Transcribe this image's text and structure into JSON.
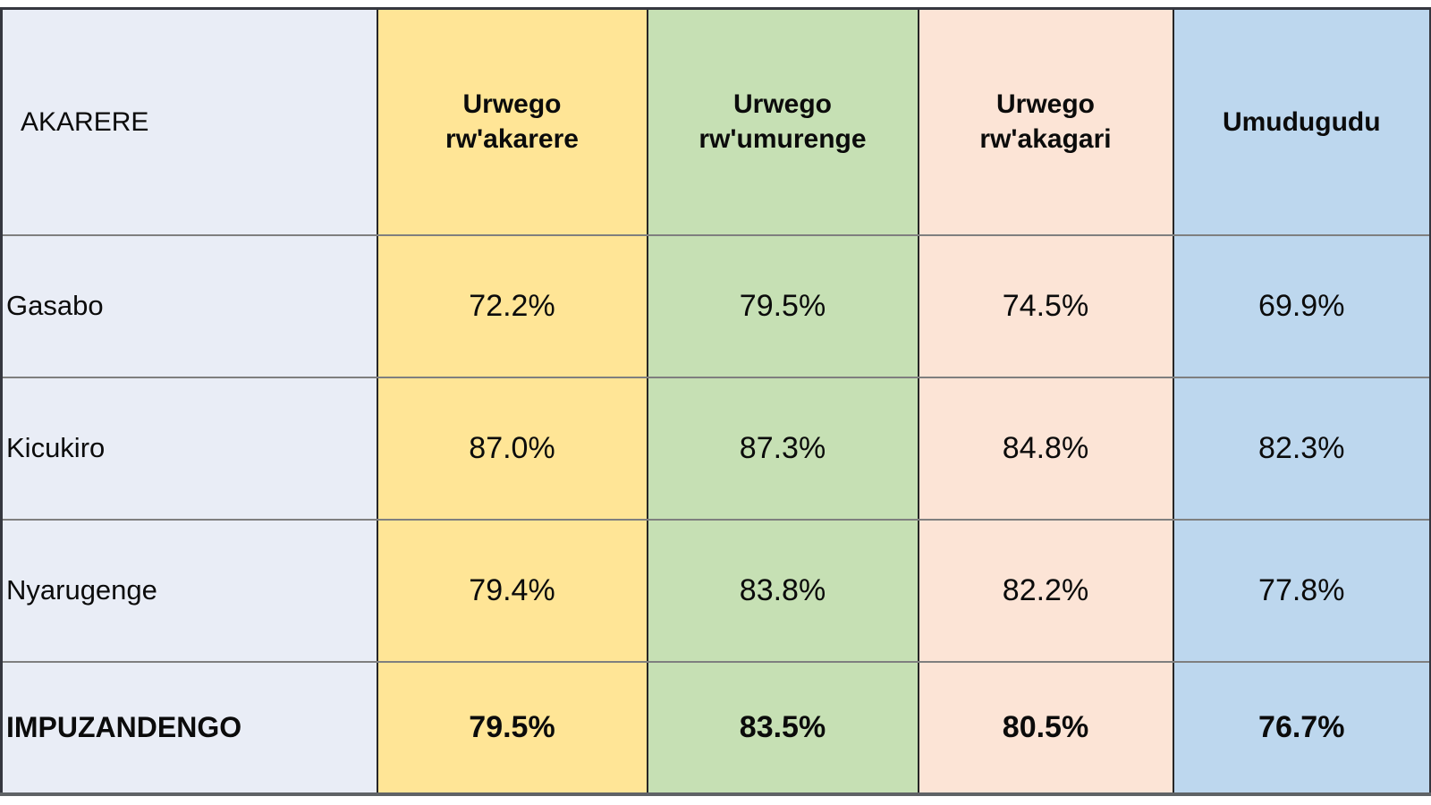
{
  "table": {
    "header_labels": [
      "AKARERE",
      "Urwego rw'akarere",
      "Urwego rw'umurenge",
      "Urwego rw'akagari",
      "Umudugudu"
    ],
    "rows": [
      {
        "label": "Gasabo",
        "values": [
          "72.2%",
          "79.5%",
          "74.5%",
          "69.9%"
        ]
      },
      {
        "label": "Kicukiro",
        "values": [
          "87.0%",
          "87.3%",
          "84.8%",
          "82.3%"
        ]
      },
      {
        "label": "Nyarugenge",
        "values": [
          "79.4%",
          "83.8%",
          "82.2%",
          "77.8%"
        ]
      },
      {
        "label": "IMPUZANDENGO",
        "values": [
          "79.5%",
          "83.5%",
          "80.5%",
          "76.7%"
        ]
      }
    ],
    "colors": {
      "col_akarere_bg": "#e9edf6",
      "col_urwego_rw_akarere_bg": "#ffe596",
      "col_urwego_rw_umurenge_bg": "#c6e0b4",
      "col_urwego_rw_akagari_bg": "#fce4d6",
      "col_umudugudu_bg": "#bdd7ee",
      "vertical_border": "#262626",
      "horizontal_border": "#7f7f7f",
      "outer_border": "#35373f"
    }
  },
  "chart_data": {
    "type": "table",
    "columns": [
      "AKARERE",
      "Urwego rw'akarere",
      "Urwego rw'umurenge",
      "Urwego rw'akagari",
      "Umudugudu"
    ],
    "rows": [
      [
        "Gasabo",
        "72.2%",
        "79.5%",
        "74.5%",
        "69.9%"
      ],
      [
        "Kicukiro",
        "87.0%",
        "87.3%",
        "84.8%",
        "82.3%"
      ],
      [
        "Nyarugenge",
        "79.4%",
        "83.8%",
        "82.2%",
        "77.8%"
      ],
      [
        "IMPUZANDENGO",
        "79.5%",
        "83.5%",
        "80.5%",
        "76.7%"
      ]
    ],
    "series": [
      {
        "name": "Urwego rw'akarere",
        "values": [
          72.2,
          87.0,
          79.4,
          79.5
        ]
      },
      {
        "name": "Urwego rw'umurenge",
        "values": [
          79.5,
          87.3,
          83.8,
          83.5
        ]
      },
      {
        "name": "Urwego rw'akagari",
        "values": [
          74.5,
          84.8,
          82.2,
          80.5
        ]
      },
      {
        "name": "Umudugudu",
        "values": [
          69.9,
          82.3,
          77.8,
          76.7
        ]
      }
    ],
    "categories": [
      "Gasabo",
      "Kicukiro",
      "Nyarugenge",
      "IMPUZANDENGO"
    ],
    "unit": "%"
  }
}
